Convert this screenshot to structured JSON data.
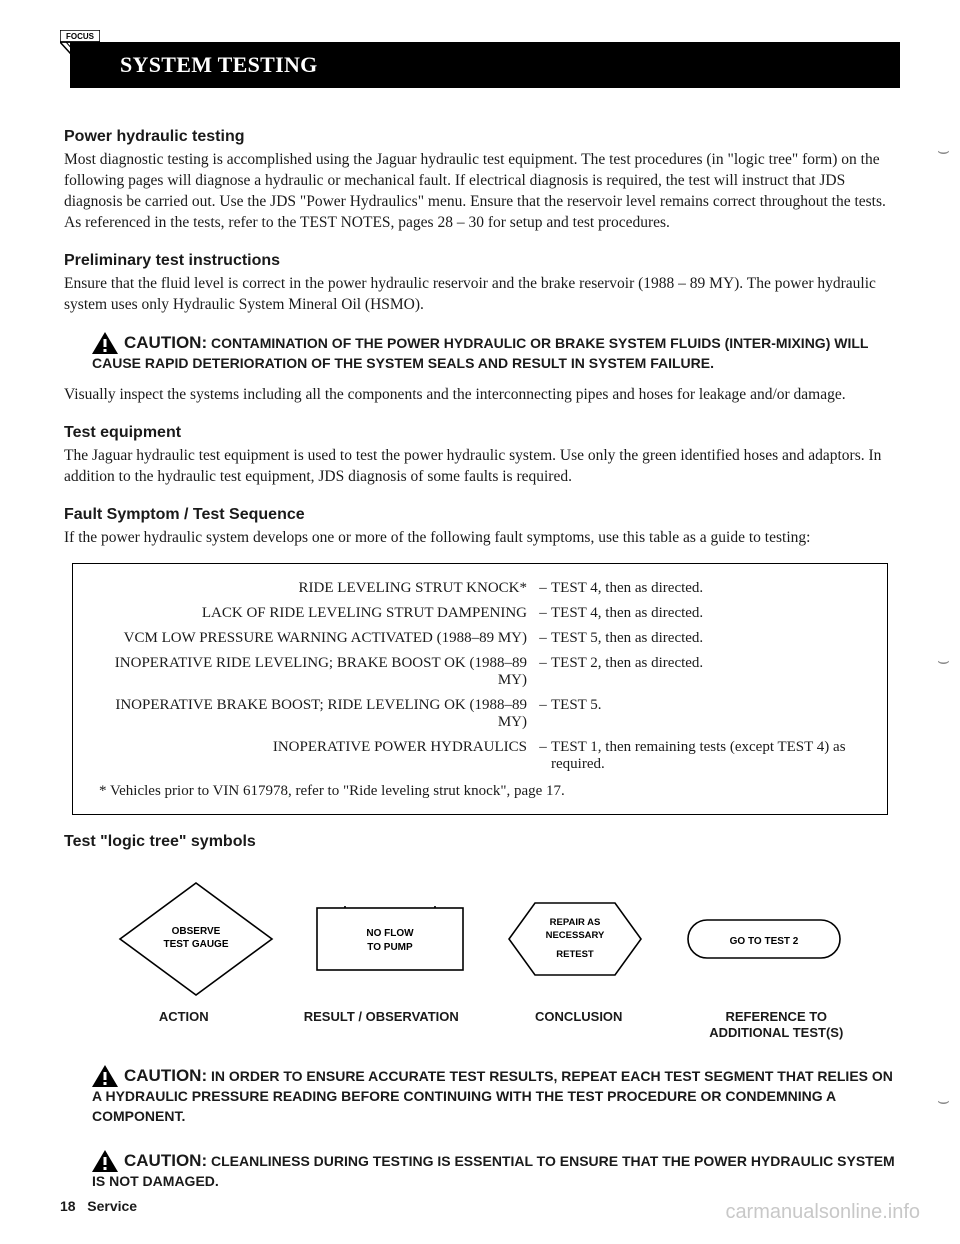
{
  "header": {
    "badge": "FOCUS",
    "title": "SYSTEM TESTING"
  },
  "sections": {
    "s1": {
      "h": "Power hydraulic testing",
      "p": "Most diagnostic testing is accomplished using the Jaguar hydraulic test equipment.  The test procedures (in \"logic tree\" form) on the following pages will diagnose a hydraulic or mechanical fault.  If electrical diagnosis is required, the test will instruct that JDS diagnosis be carried out.  Use the JDS \"Power Hydraulics\" menu.  Ensure that the reservoir level remains correct throughout the tests.  As referenced in the tests, refer to the TEST NOTES, pages 28 – 30 for setup and test procedures."
    },
    "s2": {
      "h": "Preliminary test instructions",
      "p": "Ensure that the fluid level is correct in the power hydraulic reservoir and the brake reservoir (1988 – 89 MY).  The power hydraulic system uses only Hydraulic System Mineral Oil (HSMO)."
    },
    "caution1": {
      "lead": "CAUTION:",
      "text": "CONTAMINATION OF THE POWER HYDRAULIC OR BRAKE SYSTEM FLUIDS (INTER-MIXING) WILL CAUSE RAPID DETERIORATION OF THE SYSTEM SEALS AND RESULT IN SYSTEM FAILURE."
    },
    "inspect": "Visually inspect the systems including all the components and the interconnecting pipes and hoses for leakage and/or damage.",
    "s3": {
      "h": "Test equipment",
      "p": "The Jaguar hydraulic test equipment is used to test the power hydraulic system.  Use only the green identified hoses and adaptors.  In addition to the hydraulic test equipment, JDS diagnosis of some faults is required."
    },
    "s4": {
      "h": "Fault Symptom / Test Sequence",
      "p": "If the power hydraulic system develops one or more of the following fault symptoms, use this table as a guide to testing:"
    }
  },
  "fault_table": {
    "rows": [
      {
        "sym": "RIDE LEVELING STRUT KNOCK*",
        "act": "TEST 4, then as directed."
      },
      {
        "sym": "LACK OF RIDE LEVELING STRUT DAMPENING",
        "act": "TEST 4, then as directed."
      },
      {
        "sym": "VCM LOW PRESSURE WARNING ACTIVATED (1988–89 MY)",
        "act": "TEST 5, then as directed."
      },
      {
        "sym": "INOPERATIVE RIDE LEVELING; BRAKE BOOST OK (1988–89 MY)",
        "act": "TEST 2, then as directed."
      },
      {
        "sym": "INOPERATIVE BRAKE BOOST; RIDE LEVELING OK (1988–89 MY)",
        "act": "TEST 5."
      },
      {
        "sym": "INOPERATIVE POWER HYDRAULICS",
        "act": "TEST 1, then remaining tests (except TEST 4) as required."
      }
    ],
    "note": "* Vehicles prior to VIN 617978, refer to \"Ride leveling strut knock\", page 17."
  },
  "logic": {
    "h": "Test \"logic tree\" symbols",
    "items": {
      "action": {
        "line1": "OBSERVE",
        "line2": "TEST GAUGE",
        "label": "ACTION"
      },
      "result": {
        "line1": "NO FLOW",
        "line2": "TO PUMP",
        "label": "RESULT / OBSERVATION"
      },
      "conclusion": {
        "line1": "REPAIR AS",
        "line2": "NECESSARY",
        "line3": "RETEST",
        "label": "CONCLUSION"
      },
      "ref": {
        "line1": "GO TO TEST 2",
        "label1": "REFERENCE TO",
        "label2": "ADDITIONAL TEST(S)"
      }
    }
  },
  "caution2": {
    "lead": "CAUTION:",
    "text": "IN ORDER TO ENSURE ACCURATE TEST RESULTS, REPEAT EACH TEST SEGMENT THAT RELIES ON A HYDRAULIC PRESSURE READING BEFORE CONTINUING WITH THE TEST PROCEDURE OR CONDEMNING A COMPONENT."
  },
  "caution3": {
    "lead": "CAUTION:",
    "text": "CLEANLINESS DURING TESTING IS ESSENTIAL TO ENSURE THAT THE POWER HYDRAULIC SYSTEM IS NOT DAMAGED."
  },
  "footer": {
    "page": "18",
    "section": "Service"
  },
  "watermark": "carmanualsonline.info"
}
